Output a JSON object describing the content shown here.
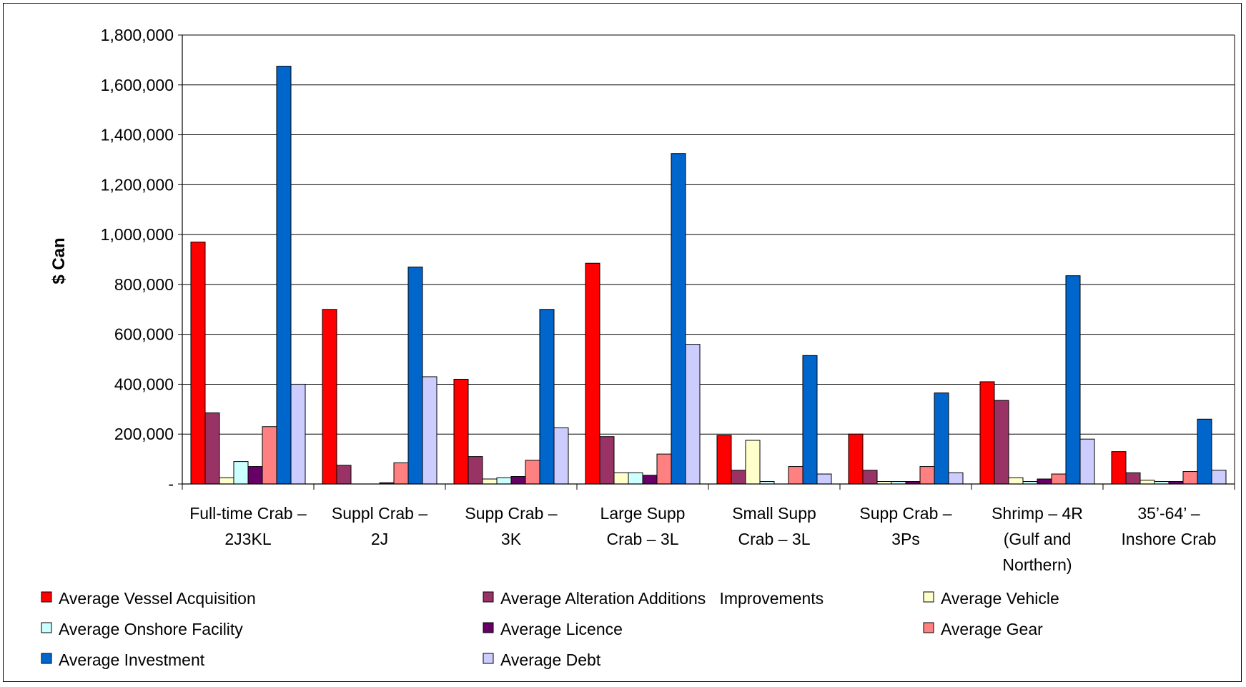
{
  "chart_data": {
    "type": "bar",
    "title": "",
    "xlabel": "",
    "ylabel": "$ Can",
    "ylim": [
      0,
      1800000
    ],
    "yticks": [
      0,
      200000,
      400000,
      600000,
      800000,
      1000000,
      1200000,
      1400000,
      1600000,
      1800000
    ],
    "ytick_labels": [
      "-",
      "200,000",
      "400,000",
      "600,000",
      "800,000",
      "1,000,000",
      "1,200,000",
      "1,400,000",
      "1,600,000",
      "1,800,000"
    ],
    "grid": true,
    "legend_position": "bottom",
    "categories": [
      [
        "Full-time Crab –",
        "2J3KL"
      ],
      [
        "Suppl Crab –",
        "2J"
      ],
      [
        "Supp Crab –",
        "3K"
      ],
      [
        "Large Supp",
        "Crab – 3L"
      ],
      [
        "Small Supp",
        "Crab – 3L"
      ],
      [
        "Supp Crab –",
        "3Ps"
      ],
      [
        "Shrimp – 4R",
        "(Gulf and",
        "Northern)"
      ],
      [
        "35’-64’ –",
        "Inshore Crab"
      ]
    ],
    "series": [
      {
        "name": "Average Vessel Acquisition",
        "color": "#FF0000",
        "values": [
          970000,
          700000,
          420000,
          885000,
          195000,
          200000,
          410000,
          130000
        ]
      },
      {
        "name": "Average Alteration Additions   Improvements",
        "color": "#993366",
        "values": [
          285000,
          75000,
          110000,
          190000,
          55000,
          55000,
          335000,
          45000
        ]
      },
      {
        "name": "Average Vehicle",
        "color": "#FFFFCC",
        "values": [
          25000,
          0,
          20000,
          45000,
          175000,
          10000,
          25000,
          15000
        ]
      },
      {
        "name": "Average Onshore Facility",
        "color": "#CCFFFF",
        "values": [
          90000,
          0,
          25000,
          45000,
          10000,
          10000,
          10000,
          10000
        ]
      },
      {
        "name": "Average Licence",
        "color": "#660066",
        "values": [
          70000,
          5000,
          30000,
          35000,
          0,
          10000,
          20000,
          10000
        ]
      },
      {
        "name": "Average Gear",
        "color": "#FF8080",
        "values": [
          230000,
          85000,
          95000,
          120000,
          70000,
          70000,
          40000,
          50000
        ]
      },
      {
        "name": "Average Investment",
        "color": "#0066CC",
        "values": [
          1675000,
          870000,
          700000,
          1325000,
          515000,
          365000,
          835000,
          260000
        ]
      },
      {
        "name": "Average Debt",
        "color": "#CCCCFF",
        "values": [
          400000,
          430000,
          225000,
          560000,
          40000,
          45000,
          180000,
          55000
        ]
      }
    ]
  }
}
